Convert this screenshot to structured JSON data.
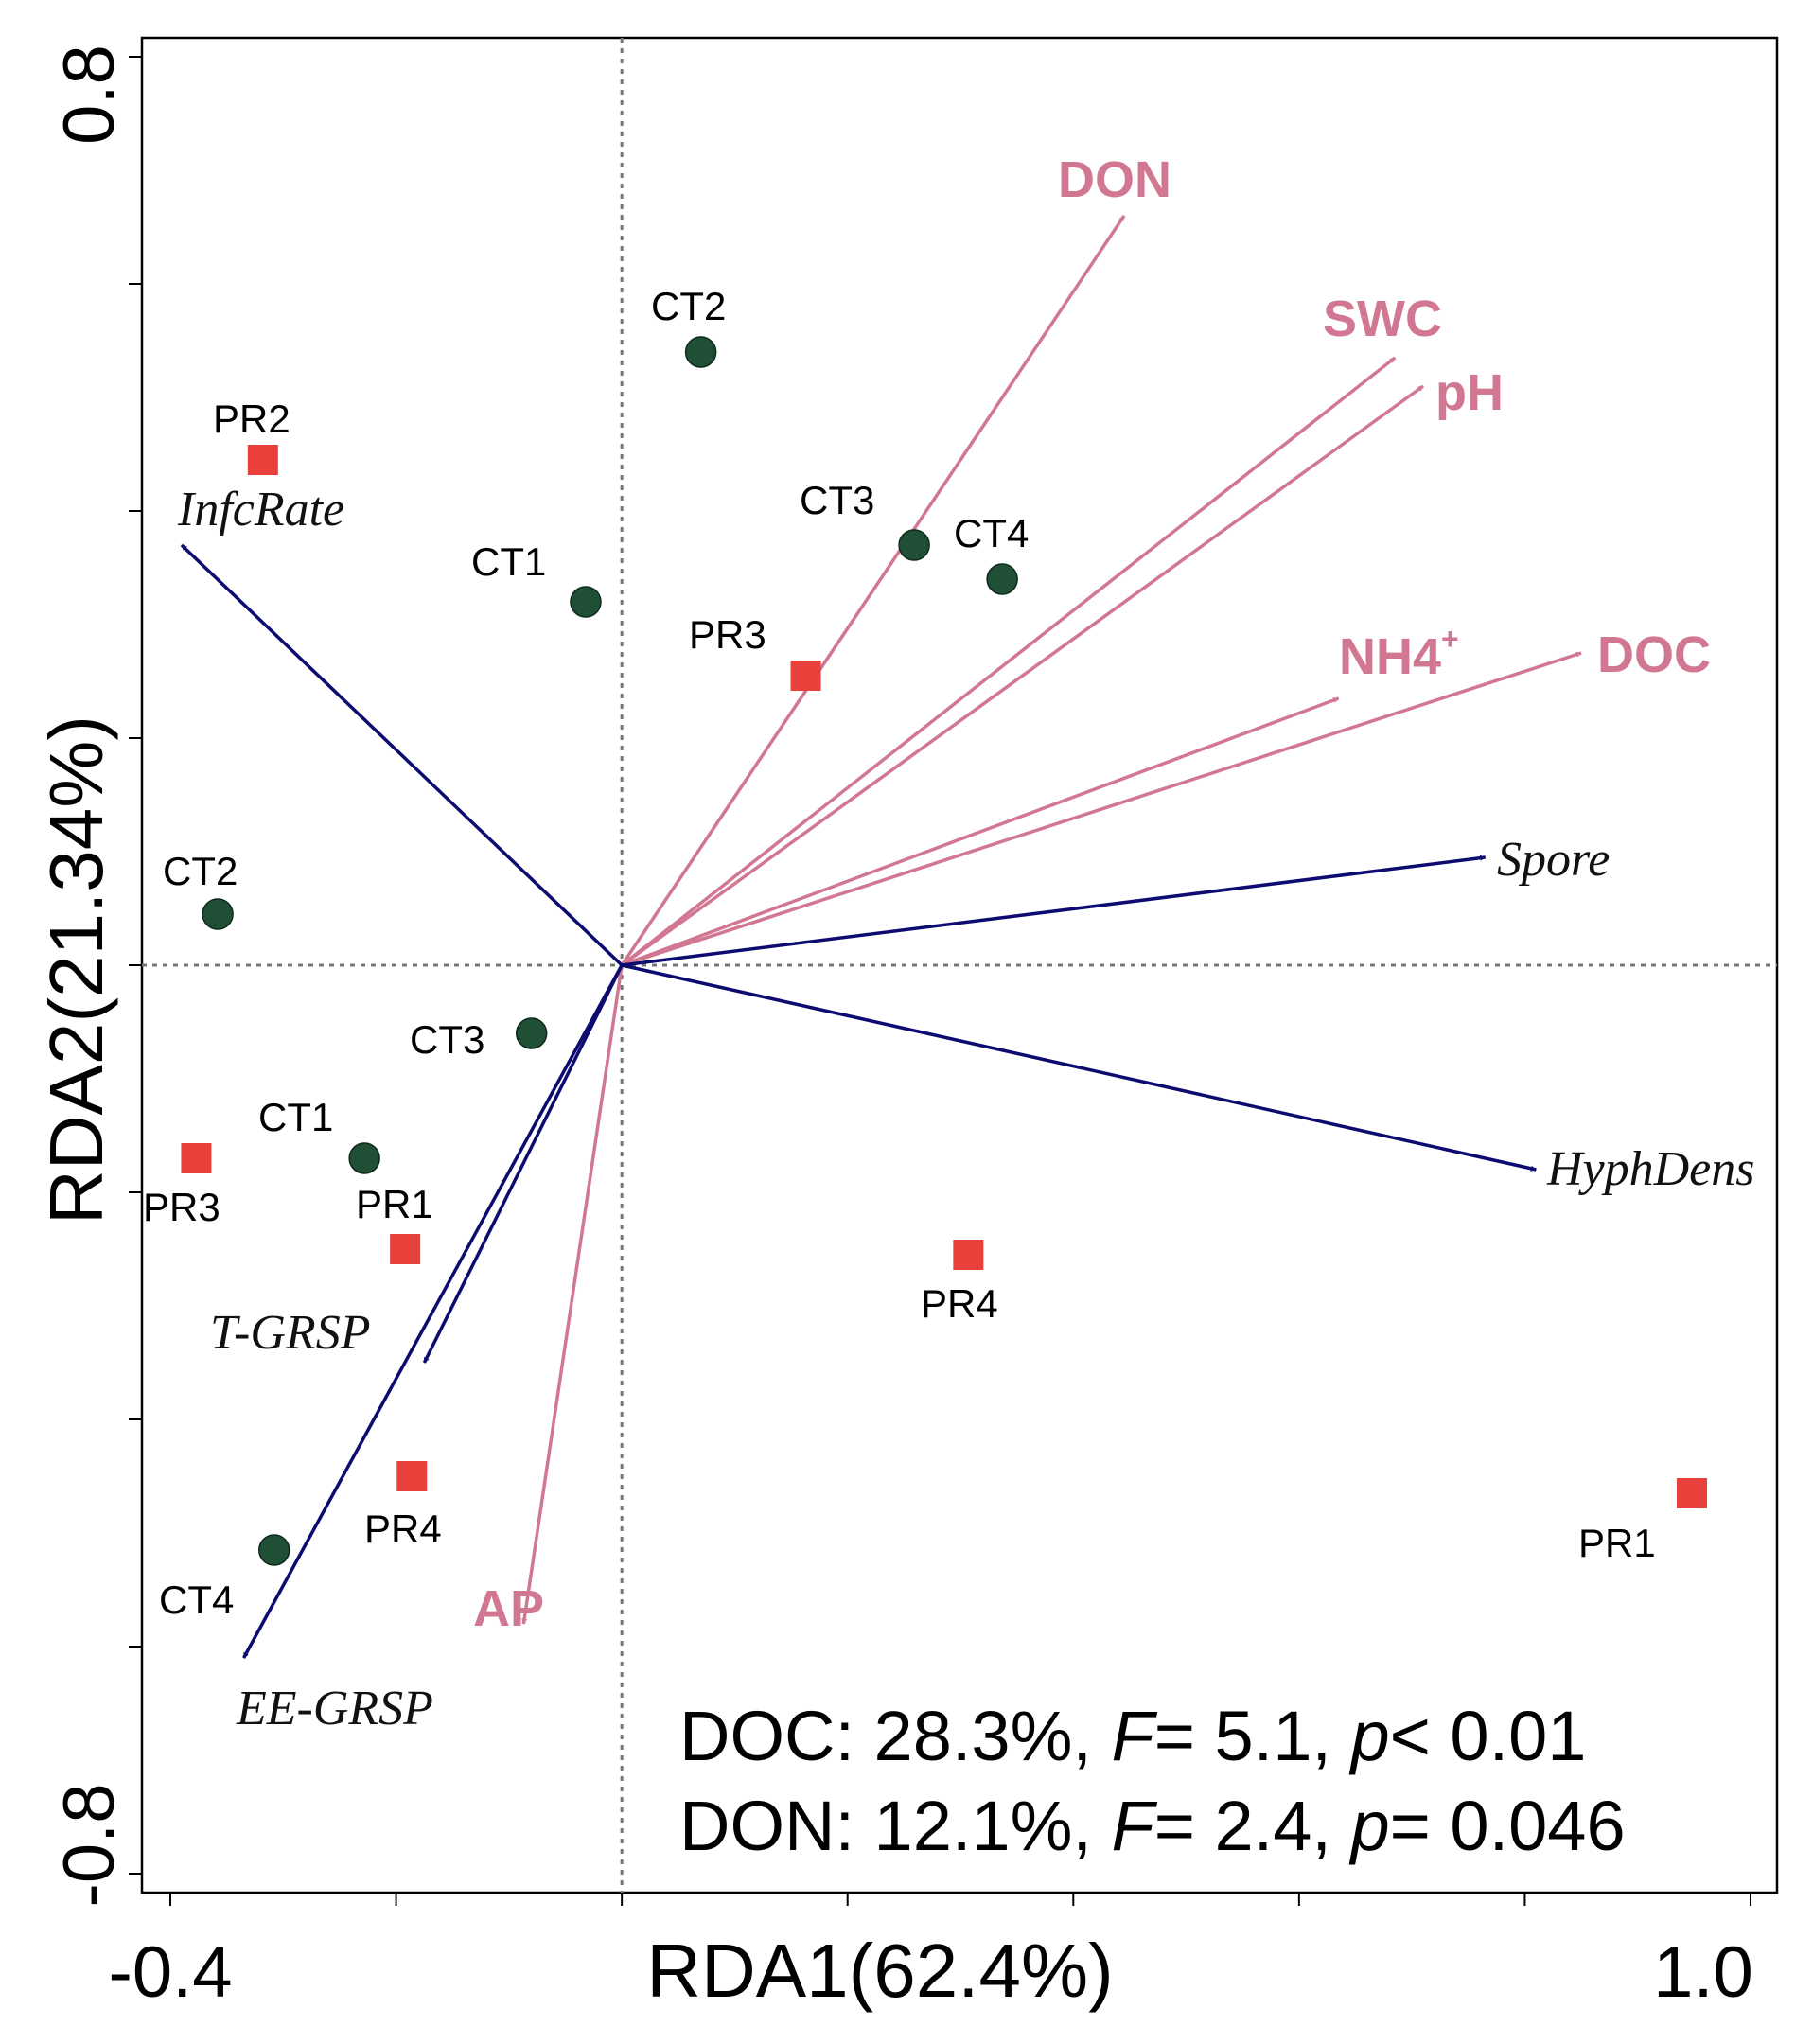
{
  "chart_data": {
    "type": "scatter",
    "subtype": "rda-biplot",
    "xlabel": "RDA1(62.4%)",
    "ylabel": "RDA2(21.34%)",
    "xlim": [
      -0.4,
      1.0
    ],
    "ylim": [
      -0.8,
      0.8
    ],
    "x_tick_labels": [
      {
        "value": -0.4,
        "label": "-0.4"
      },
      {
        "value": 1.0,
        "label": "1.0"
      }
    ],
    "y_tick_labels": [
      {
        "value": 0.8,
        "label": "0.8"
      },
      {
        "value": -0.8,
        "label": "-0.8"
      }
    ],
    "x_minor_ticks": [
      -0.4,
      -0.2,
      0.0,
      0.2,
      0.4,
      0.6,
      0.8,
      1.0
    ],
    "y_minor_ticks": [
      -0.8,
      -0.6,
      -0.4,
      -0.2,
      0.0,
      0.2,
      0.4,
      0.6,
      0.8
    ],
    "zero_lines": true,
    "series": [
      {
        "name": "CT",
        "marker": "circle",
        "color": "#1f4f35",
        "points": [
          {
            "label": "CT2",
            "x": 0.07,
            "y": 0.54
          },
          {
            "label": "CT3",
            "x": 0.259,
            "y": 0.37
          },
          {
            "label": "CT4",
            "x": 0.337,
            "y": 0.34
          },
          {
            "label": "CT1",
            "x": -0.032,
            "y": 0.32
          },
          {
            "label": "CT2",
            "x": -0.358,
            "y": 0.045
          },
          {
            "label": "CT3",
            "x": -0.08,
            "y": -0.06
          },
          {
            "label": "CT1",
            "x": -0.228,
            "y": -0.17
          },
          {
            "label": "CT4",
            "x": -0.308,
            "y": -0.515
          }
        ]
      },
      {
        "name": "PR",
        "marker": "square",
        "color": "#e8403a",
        "points": [
          {
            "label": "PR2",
            "x": -0.318,
            "y": 0.445
          },
          {
            "label": "PR3",
            "x": 0.163,
            "y": 0.255
          },
          {
            "label": "PR3",
            "x": -0.377,
            "y": -0.17
          },
          {
            "label": "PR1",
            "x": -0.192,
            "y": -0.25
          },
          {
            "label": "PR4",
            "x": 0.307,
            "y": -0.255
          },
          {
            "label": "PR4",
            "x": -0.186,
            "y": -0.45
          },
          {
            "label": "PR1",
            "x": 0.948,
            "y": -0.465
          }
        ]
      }
    ],
    "environmental_vectors": [
      {
        "name": "DON",
        "x": 0.445,
        "y": 0.66
      },
      {
        "name": "SWC",
        "x": 0.685,
        "y": 0.535
      },
      {
        "name": "pH",
        "x": 0.71,
        "y": 0.51
      },
      {
        "name": "NH4",
        "sup": "+",
        "x": 0.635,
        "y": 0.235
      },
      {
        "name": "DOC",
        "x": 0.85,
        "y": 0.275
      },
      {
        "name": "AP",
        "x": -0.087,
        "y": -0.58
      }
    ],
    "response_vectors": [
      {
        "name": "InfcRate",
        "x": -0.39,
        "y": 0.37
      },
      {
        "name": "Spore",
        "x": 0.765,
        "y": 0.095
      },
      {
        "name": "HyphDens",
        "x": 0.81,
        "y": -0.18
      },
      {
        "name": "T-GRSP",
        "x": -0.175,
        "y": -0.35
      },
      {
        "name": "EE-GRSP",
        "x": -0.335,
        "y": -0.61
      }
    ],
    "annotations": [
      {
        "prefix": "DOC: 28.3%, ",
        "f_symbol": "F",
        "f_text": "= 5.1, ",
        "p_symbol": "p",
        "p_text": "< 0.01"
      },
      {
        "prefix": "DON: 12.1%, ",
        "f_symbol": "F",
        "f_text": "= 2.4, ",
        "p_symbol": "p",
        "p_text": "= 0.046"
      }
    ],
    "colors": {
      "environmental": "#d27792",
      "response": "#0c0c70",
      "ct_marker": "#1f4f35",
      "pr_marker": "#e8403a"
    }
  }
}
